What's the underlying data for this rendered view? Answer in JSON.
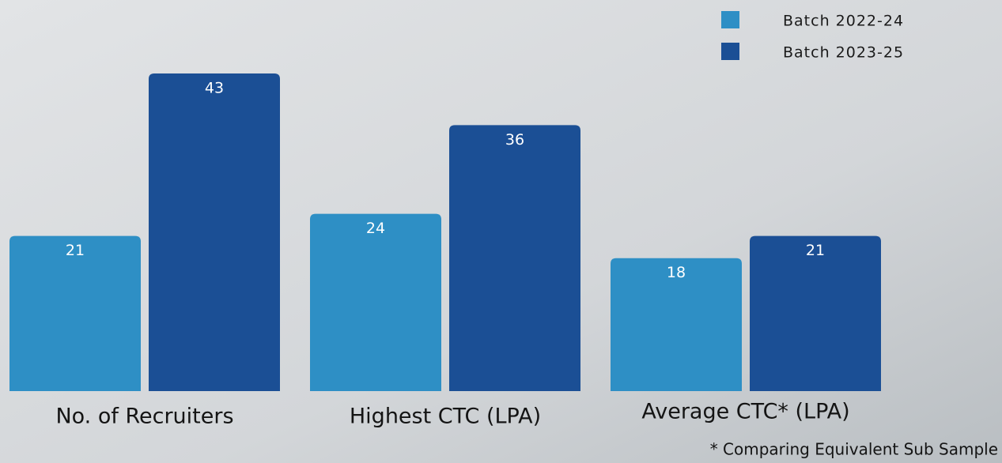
{
  "chart_data": {
    "type": "bar",
    "categories": [
      "No. of Recruiters",
      "Highest CTC (LPA)",
      "Average CTC* (LPA)"
    ],
    "series": [
      {
        "name": "Batch 2022-24",
        "color": "#2e8fc5",
        "values": [
          21,
          24,
          18
        ]
      },
      {
        "name": "Batch 2023-25",
        "color": "#1b4f95",
        "values": [
          43,
          36,
          21
        ]
      }
    ],
    "legend": "top-right",
    "annotation": "* Comparing Equivalent Sub Sample"
  }
}
